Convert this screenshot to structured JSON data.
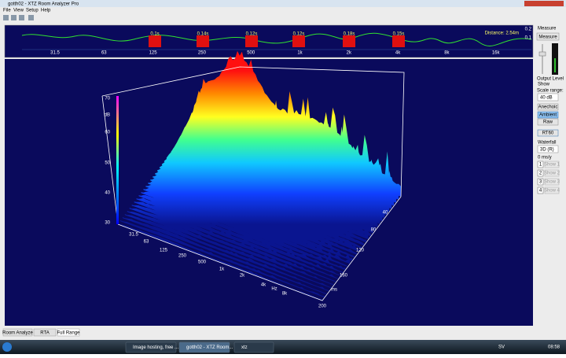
{
  "window": {
    "title": "gotth02 - XTZ Room Analyzer Pro"
  },
  "menu": [
    "File",
    "View",
    "Setup",
    "Help"
  ],
  "overview": {
    "decay_labels": [
      "0.1s",
      "0.14s",
      "0.12s",
      "0.12s",
      "0.18s",
      "0.15s"
    ],
    "freq_labels": [
      "31.5",
      "63",
      "125",
      "250",
      "500",
      "1k",
      "2k",
      "4k",
      "8k",
      "16k"
    ],
    "distance": "Distance: 2.54m",
    "scale": [
      "0.2",
      "0.1"
    ]
  },
  "plot": {
    "z_labels": [
      "70",
      "dB",
      "60",
      "50",
      "40",
      "30"
    ],
    "freq_labels": [
      "31.5",
      "63",
      "125",
      "250",
      "500",
      "1k",
      "2k",
      "4k",
      "Hz",
      "8k"
    ],
    "time_labels": [
      "40",
      "80",
      "120",
      "160",
      "ms",
      "200"
    ]
  },
  "panel": {
    "measure_label": "Measure",
    "measure_button": "Measure",
    "output_level": "Output Level",
    "show": "Show",
    "scale_range": "Scale range:",
    "scale_value": "40 dB",
    "buttons": [
      "Anechoic",
      "Ambient",
      "Raw"
    ],
    "rt60": "RT60",
    "waterfall": "Waterfall",
    "waterfall_mode": "3D (R)",
    "delay": "0 ms/y",
    "shows": [
      {
        "num": "1",
        "label": "Show 1"
      },
      {
        "num": "2",
        "label": "Show 2"
      },
      {
        "num": "3",
        "label": "Show 3"
      },
      {
        "num": "4",
        "label": "Show 4"
      }
    ]
  },
  "tabs": [
    "Room Analyze",
    "RTA",
    "Full Range"
  ],
  "taskbar": {
    "items": [
      "Image hosting, free ...",
      "gotth02 - XTZ Room...",
      "xtz"
    ],
    "lang": "SV",
    "clock": "08:58"
  }
}
